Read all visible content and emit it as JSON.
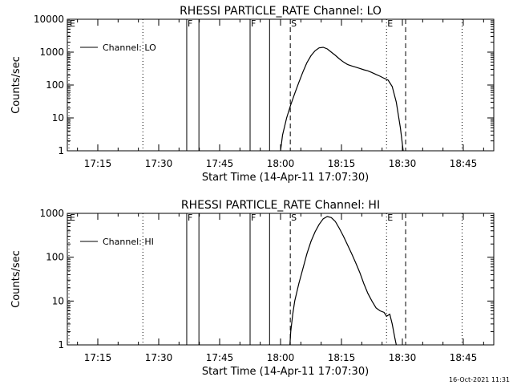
{
  "chart_data": [
    {
      "type": "line",
      "title": "RHESSI PARTICLE_RATE Channel: LO",
      "xlabel": "Start Time (14-Apr-11 17:07:30)",
      "ylabel": "Counts/sec",
      "x_unit": "minutes since 17:07:30",
      "xlim": [
        0,
        105
      ],
      "ylim": [
        1,
        10000
      ],
      "yscale": "log",
      "x_ticks": [
        {
          "t": 7.5,
          "label": "17:15"
        },
        {
          "t": 22.5,
          "label": "17:30"
        },
        {
          "t": 37.5,
          "label": "17:45"
        },
        {
          "t": 52.5,
          "label": "18:00"
        },
        {
          "t": 67.5,
          "label": "18:15"
        },
        {
          "t": 82.5,
          "label": "18:30"
        },
        {
          "t": 97.5,
          "label": "18:45"
        }
      ],
      "y_ticks": [
        {
          "v": 1,
          "label": "1"
        },
        {
          "v": 10,
          "label": "10"
        },
        {
          "v": 100,
          "label": "100"
        },
        {
          "v": 1000,
          "label": "1000"
        },
        {
          "v": 10000,
          "label": "10000"
        }
      ],
      "legend": {
        "position": "top-left",
        "entries": [
          "Channel: LO"
        ]
      },
      "series": [
        {
          "name": "Channel: LO",
          "points": [
            [
              52.5,
              1
            ],
            [
              53.0,
              3
            ],
            [
              54.0,
              10
            ],
            [
              55.0,
              25
            ],
            [
              56.0,
              55
            ],
            [
              57.0,
              120
            ],
            [
              58.0,
              250
            ],
            [
              59.0,
              480
            ],
            [
              60.0,
              780
            ],
            [
              61.0,
              1100
            ],
            [
              62.0,
              1350
            ],
            [
              63.0,
              1400
            ],
            [
              64.0,
              1250
            ],
            [
              65.0,
              1000
            ],
            [
              66.0,
              800
            ],
            [
              67.0,
              620
            ],
            [
              68.0,
              500
            ],
            [
              69.0,
              420
            ],
            [
              70.0,
              380
            ],
            [
              71.0,
              350
            ],
            [
              72.0,
              320
            ],
            [
              73.0,
              290
            ],
            [
              74.0,
              270
            ],
            [
              75.0,
              240
            ],
            [
              76.0,
              210
            ],
            [
              77.0,
              185
            ],
            [
              78.0,
              160
            ],
            [
              79.0,
              140
            ],
            [
              80.0,
              90
            ],
            [
              81.0,
              30
            ],
            [
              82.0,
              5
            ],
            [
              82.7,
              1
            ]
          ]
        }
      ],
      "markers": [
        {
          "t": 0.4,
          "style": "dotted",
          "label": "E"
        },
        {
          "t": 18.6,
          "style": "dotted",
          "label": ""
        },
        {
          "t": 29.4,
          "style": "solid",
          "label": "F"
        },
        {
          "t": 32.4,
          "style": "solid",
          "label": ""
        },
        {
          "t": 45.0,
          "style": "solid",
          "label": "F"
        },
        {
          "t": 49.8,
          "style": "solid",
          "label": ""
        },
        {
          "t": 54.9,
          "style": "dashed",
          "label": "S"
        },
        {
          "t": 78.6,
          "style": "dotted",
          "label": "E"
        },
        {
          "t": 83.3,
          "style": "dashed",
          "label": ""
        },
        {
          "t": 97.2,
          "style": "dotted",
          "label": ""
        }
      ]
    },
    {
      "type": "line",
      "title": "RHESSI PARTICLE_RATE Channel: HI",
      "xlabel": "Start Time (14-Apr-11 17:07:30)",
      "ylabel": "Counts/sec",
      "x_unit": "minutes since 17:07:30",
      "xlim": [
        0,
        105
      ],
      "ylim": [
        1,
        1000
      ],
      "yscale": "log",
      "x_ticks": [
        {
          "t": 7.5,
          "label": "17:15"
        },
        {
          "t": 22.5,
          "label": "17:30"
        },
        {
          "t": 37.5,
          "label": "17:45"
        },
        {
          "t": 52.5,
          "label": "18:00"
        },
        {
          "t": 67.5,
          "label": "18:15"
        },
        {
          "t": 82.5,
          "label": "18:30"
        },
        {
          "t": 97.5,
          "label": "18:45"
        }
      ],
      "y_ticks": [
        {
          "v": 1,
          "label": "1"
        },
        {
          "v": 10,
          "label": "10"
        },
        {
          "v": 100,
          "label": "100"
        },
        {
          "v": 1000,
          "label": "1000"
        }
      ],
      "legend": {
        "position": "top-left",
        "entries": [
          "Channel: HI"
        ]
      },
      "series": [
        {
          "name": "Channel: HI",
          "points": [
            [
              54.8,
              1
            ],
            [
              55.0,
              2
            ],
            [
              55.5,
              5
            ],
            [
              56.0,
              10
            ],
            [
              57.0,
              25
            ],
            [
              58.0,
              55
            ],
            [
              59.0,
              120
            ],
            [
              60.0,
              230
            ],
            [
              61.0,
              380
            ],
            [
              62.0,
              560
            ],
            [
              63.0,
              750
            ],
            [
              64.0,
              850
            ],
            [
              65.0,
              800
            ],
            [
              66.0,
              650
            ],
            [
              67.0,
              450
            ],
            [
              68.0,
              300
            ],
            [
              69.0,
              190
            ],
            [
              70.0,
              120
            ],
            [
              71.0,
              75
            ],
            [
              72.0,
              45
            ],
            [
              73.0,
              25
            ],
            [
              74.0,
              15
            ],
            [
              75.0,
              10
            ],
            [
              76.0,
              7
            ],
            [
              77.0,
              6
            ],
            [
              78.0,
              5.5
            ],
            [
              78.6,
              4.5
            ],
            [
              79.4,
              5
            ],
            [
              80.0,
              3
            ],
            [
              80.6,
              1.5
            ],
            [
              81.0,
              1
            ]
          ]
        }
      ],
      "markers": [
        {
          "t": 0.4,
          "style": "dotted",
          "label": "E"
        },
        {
          "t": 18.6,
          "style": "dotted",
          "label": ""
        },
        {
          "t": 29.4,
          "style": "solid",
          "label": "F"
        },
        {
          "t": 32.4,
          "style": "solid",
          "label": ""
        },
        {
          "t": 45.0,
          "style": "solid",
          "label": "F"
        },
        {
          "t": 49.8,
          "style": "solid",
          "label": ""
        },
        {
          "t": 54.9,
          "style": "dashed",
          "label": "S"
        },
        {
          "t": 78.6,
          "style": "dotted",
          "label": "E"
        },
        {
          "t": 83.3,
          "style": "dashed",
          "label": ""
        },
        {
          "t": 97.2,
          "style": "dotted",
          "label": ""
        }
      ]
    }
  ],
  "footer": {
    "timestamp": "16-Oct-2021 11:31"
  }
}
